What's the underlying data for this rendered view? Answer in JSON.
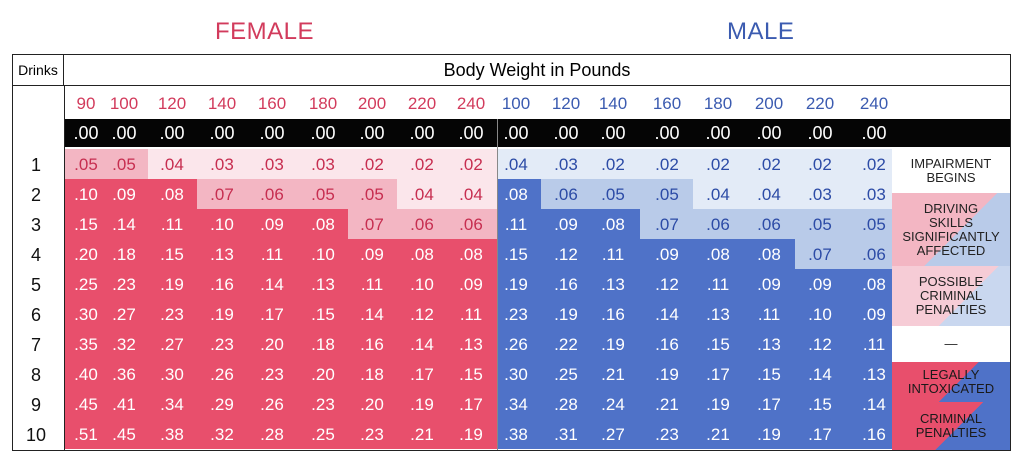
{
  "headers": {
    "female": "FEMALE",
    "male": "MALE"
  },
  "table": {
    "drinks_label": "Drinks",
    "weight_label": "Body Weight in Pounds",
    "female_weights": [
      "90",
      "100",
      "120",
      "140",
      "160",
      "180",
      "200",
      "220",
      "240"
    ],
    "male_weights": [
      "100",
      "120",
      "140",
      "160",
      "180",
      "200",
      "220",
      "240"
    ],
    "zero_row": [
      ".00",
      ".00",
      ".00",
      ".00",
      ".00",
      ".00",
      ".00",
      ".00",
      ".00",
      ".00",
      ".00",
      ".00",
      ".00",
      ".00",
      ".00",
      ".00",
      ".00"
    ],
    "drinks": [
      "1",
      "2",
      "3",
      "4",
      "5",
      "6",
      "7",
      "8",
      "9",
      "10"
    ],
    "female_rows": [
      [
        ".05",
        ".05",
        ".04",
        ".03",
        ".03",
        ".03",
        ".02",
        ".02",
        ".02"
      ],
      [
        ".10",
        ".09",
        ".08",
        ".07",
        ".06",
        ".05",
        ".05",
        ".04",
        ".04"
      ],
      [
        ".15",
        ".14",
        ".11",
        ".10",
        ".09",
        ".08",
        ".07",
        ".06",
        ".06"
      ],
      [
        ".20",
        ".18",
        ".15",
        ".13",
        ".11",
        ".10",
        ".09",
        ".08",
        ".08"
      ],
      [
        ".25",
        ".23",
        ".19",
        ".16",
        ".14",
        ".13",
        ".11",
        ".10",
        ".09"
      ],
      [
        ".30",
        ".27",
        ".23",
        ".19",
        ".17",
        ".15",
        ".14",
        ".12",
        ".11"
      ],
      [
        ".35",
        ".32",
        ".27",
        ".23",
        ".20",
        ".18",
        ".16",
        ".14",
        ".13"
      ],
      [
        ".40",
        ".36",
        ".30",
        ".26",
        ".23",
        ".20",
        ".18",
        ".17",
        ".15"
      ],
      [
        ".45",
        ".41",
        ".34",
        ".29",
        ".26",
        ".23",
        ".20",
        ".19",
        ".17"
      ],
      [
        ".51",
        ".45",
        ".38",
        ".32",
        ".28",
        ".25",
        ".23",
        ".21",
        ".19"
      ]
    ],
    "male_rows": [
      [
        ".04",
        ".03",
        ".02",
        ".02",
        ".02",
        ".02",
        ".02",
        ".02"
      ],
      [
        ".08",
        ".06",
        ".05",
        ".05",
        ".04",
        ".04",
        ".03",
        ".03"
      ],
      [
        ".11",
        ".09",
        ".08",
        ".07",
        ".06",
        ".06",
        ".05",
        ".05"
      ],
      [
        ".15",
        ".12",
        ".11",
        ".09",
        ".08",
        ".08",
        ".07",
        ".06"
      ],
      [
        ".19",
        ".16",
        ".13",
        ".12",
        ".11",
        ".09",
        ".09",
        ".08"
      ],
      [
        ".23",
        ".19",
        ".16",
        ".14",
        ".13",
        ".11",
        ".10",
        ".09"
      ],
      [
        ".26",
        ".22",
        ".19",
        ".16",
        ".15",
        ".13",
        ".12",
        ".11"
      ],
      [
        ".30",
        ".25",
        ".21",
        ".19",
        ".17",
        ".15",
        ".14",
        ".13"
      ],
      [
        ".34",
        ".28",
        ".24",
        ".21",
        ".19",
        ".17",
        ".15",
        ".14"
      ],
      [
        ".38",
        ".31",
        ".27",
        ".23",
        ".21",
        ".19",
        ".17",
        ".16"
      ]
    ]
  },
  "legend": [
    {
      "text": "IMPAIRMENT\nBEGINS"
    },
    {
      "text": "DRIVING\nSKILLS\nSIGNIFICANTLY\nAFFECTED"
    },
    {
      "text": "POSSIBLE\nCRIMINAL\nPENALTIES"
    },
    {
      "text": "—"
    },
    {
      "text": "LEGALLY\nINTOXICATED"
    },
    {
      "text": "CRIMINAL\nPENALTIES"
    }
  ],
  "colors": {
    "female_dark": "#e84f6c",
    "female_mid": "#f3b6c3",
    "female_light": "#fbe6eb",
    "male_dark": "#4f72c8",
    "male_mid": "#b9cbe9",
    "male_light": "#e3ebf7"
  }
}
